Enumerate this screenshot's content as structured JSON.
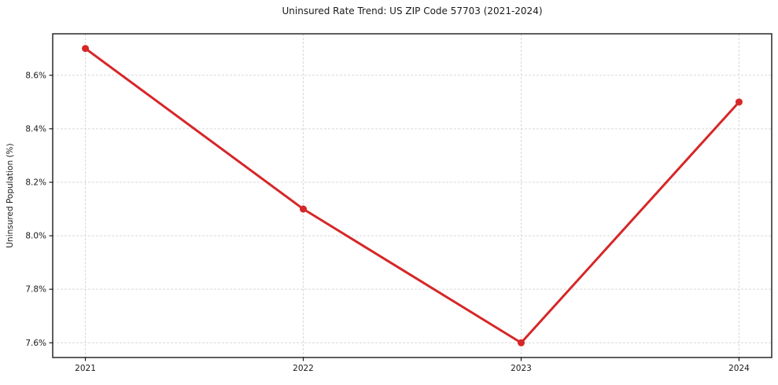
{
  "chart_data": {
    "type": "line",
    "title": "Uninsured Rate Trend: US ZIP Code 57703 (2021-2024)",
    "xlabel": "",
    "ylabel": "Uninsured Population (%)",
    "x": [
      2021,
      2022,
      2023,
      2024
    ],
    "x_tick_labels": [
      "2021",
      "2022",
      "2023",
      "2024"
    ],
    "series": [
      {
        "name": "uninsured-rate",
        "values": [
          8.7,
          8.1,
          7.6,
          8.5
        ],
        "color": "#d62728",
        "marker": "circle"
      }
    ],
    "y_ticks": [
      7.6,
      7.8,
      8.0,
      8.2,
      8.4,
      8.6
    ],
    "y_tick_labels": [
      "7.6%",
      "7.8%",
      "8.0%",
      "8.2%",
      "8.4%",
      "8.6%"
    ],
    "xlim": [
      2020.85,
      2024.15
    ],
    "ylim": [
      7.545,
      8.755
    ],
    "grid": true,
    "grid_style": "dashed",
    "legend": "none",
    "colors": {
      "line": "#d62728",
      "grid": "#d9d9d9",
      "frame": "#1a1a1a",
      "tick": "#1a1a1a",
      "text": "#1a1a1a",
      "background": "#ffffff"
    }
  }
}
